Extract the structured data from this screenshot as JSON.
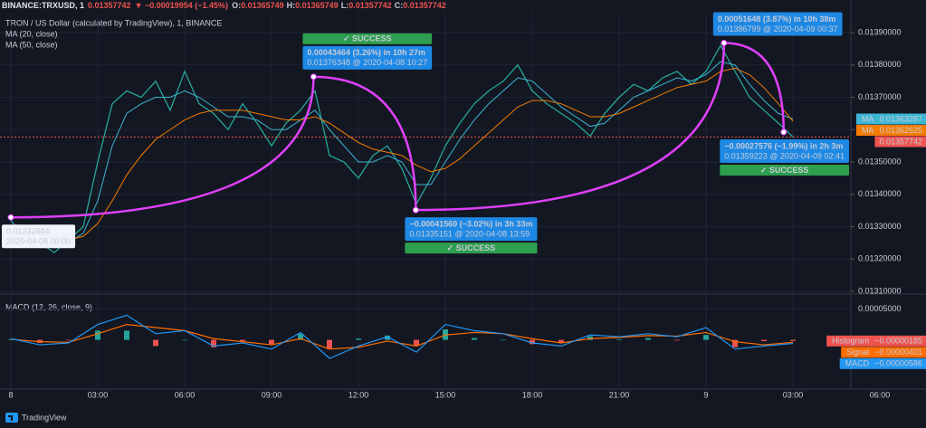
{
  "header": {
    "symbol": "BINANCE:TRXUSD, 1",
    "last": 0.01357742,
    "change": "▼ −0.00019954 (−1.45%)",
    "ohlc": [
      {
        "label": "O:",
        "value": 0.01365749
      },
      {
        "label": "H:",
        "value": 0.01365749
      },
      {
        "label": "L:",
        "value": 0.01357742
      },
      {
        "label": "C:",
        "value": 0.01357742
      }
    ]
  },
  "footer": {
    "brand": "TradingView"
  },
  "chart_data": [
    {
      "type": "line",
      "title": "TRON / US Dollar (calculated by TradingView), 1, BINANCE",
      "x": [
        0,
        0.5,
        1,
        1.5,
        2,
        2.5,
        3,
        3.5,
        4,
        4.5,
        5,
        5.5,
        6,
        6.5,
        7,
        7.5,
        8,
        8.5,
        9,
        9.5,
        10,
        10.5,
        11,
        11.5,
        12,
        12.5,
        13,
        13.5,
        14,
        14.5,
        15,
        15.5,
        16,
        16.5,
        17,
        17.5,
        18,
        18.5,
        19,
        19.5,
        20,
        20.5,
        21,
        21.5,
        22,
        22.5,
        23,
        23.5,
        24,
        24.5,
        25,
        25.5,
        26,
        26.5,
        27
      ],
      "xlim": [
        -0.375,
        29
      ],
      "xticks": [
        {
          "value": 0,
          "label": "8"
        },
        {
          "value": 3,
          "label": "03:00"
        },
        {
          "value": 6,
          "label": "06:00"
        },
        {
          "value": 9,
          "label": "09:00"
        },
        {
          "value": 12,
          "label": "12:00"
        },
        {
          "value": 15,
          "label": "15:00"
        },
        {
          "value": 18,
          "label": "18:00"
        },
        {
          "value": 21,
          "label": "21:00"
        },
        {
          "value": 24,
          "label": "9"
        },
        {
          "value": 27,
          "label": "03:00"
        },
        {
          "value": 30,
          "label": "06:00"
        }
      ],
      "ylim": [
        0.0131,
        0.01397
      ],
      "yticks": [
        {
          "value": 0.0131,
          "label": "0.01310000"
        },
        {
          "value": 0.0132,
          "label": "0.01320000"
        },
        {
          "value": 0.0133,
          "label": "0.01330000"
        },
        {
          "value": 0.0134,
          "label": "0.01340000"
        },
        {
          "value": 0.0135,
          "label": "0.01350000"
        },
        {
          "value": 0.0136,
          "label": "0.01360000"
        },
        {
          "value": 0.0137,
          "label": "0.01370000"
        },
        {
          "value": 0.0138,
          "label": "0.01380000"
        },
        {
          "value": 0.0139,
          "label": "0.01390000"
        }
      ],
      "grid": true,
      "series": [
        {
          "color": "#26a69a",
          "last_color": "#ef5350",
          "values": [
            0.01332,
            0.01326,
            0.01325,
            0.01322,
            0.01326,
            0.0133,
            0.0135,
            0.01368,
            0.01372,
            0.0137,
            0.01375,
            0.01366,
            0.01378,
            0.01368,
            0.01365,
            0.0136,
            0.01368,
            0.01362,
            0.01355,
            0.01362,
            0.01366,
            0.01372,
            0.01352,
            0.0135,
            0.01345,
            0.01352,
            0.01355,
            0.01348,
            0.01337,
            0.01345,
            0.01355,
            0.01362,
            0.01368,
            0.01372,
            0.01375,
            0.0138,
            0.01372,
            0.01368,
            0.01365,
            0.01362,
            0.01358,
            0.01365,
            0.0137,
            0.01374,
            0.01372,
            0.01376,
            0.01378,
            0.01374,
            0.01378,
            0.01386,
            0.01378,
            0.0137,
            0.01366,
            0.01362,
            0.01357742
          ]
        },
        {
          "name": "MA (20, close)",
          "tag": "MA",
          "color": "#3cb6d3",
          "values": [
            0.0133,
            0.01328,
            0.01326,
            0.01325,
            0.01325,
            0.01328,
            0.01338,
            0.01355,
            0.01365,
            0.01368,
            0.0137,
            0.0137,
            0.01372,
            0.0137,
            0.01367,
            0.01364,
            0.01364,
            0.01363,
            0.0136,
            0.0136,
            0.01363,
            0.01366,
            0.0136,
            0.01355,
            0.0135,
            0.0135,
            0.01352,
            0.0135,
            0.01343,
            0.01343,
            0.0135,
            0.01357,
            0.01363,
            0.01368,
            0.01372,
            0.01376,
            0.01375,
            0.01371,
            0.01367,
            0.01364,
            0.01361,
            0.01362,
            0.01366,
            0.0137,
            0.01372,
            0.01374,
            0.01376,
            0.01375,
            0.01377,
            0.01381,
            0.0138,
            0.01374,
            0.01369,
            0.01365,
            0.01363287
          ]
        },
        {
          "name": "MA (50, close)",
          "tag": "MA",
          "color": "#f57c00",
          "values": [
            0.0133,
            0.01329,
            0.01328,
            0.01327,
            0.01326,
            0.01327,
            0.01331,
            0.01338,
            0.01346,
            0.01352,
            0.01357,
            0.0136,
            0.01363,
            0.01365,
            0.01366,
            0.01366,
            0.01366,
            0.01365,
            0.01364,
            0.01363,
            0.01363,
            0.01364,
            0.01362,
            0.01359,
            0.01356,
            0.01354,
            0.01353,
            0.01352,
            0.01349,
            0.01347,
            0.01348,
            0.01351,
            0.01355,
            0.01359,
            0.01363,
            0.01367,
            0.01369,
            0.01369,
            0.01368,
            0.01366,
            0.01364,
            0.01364,
            0.01365,
            0.01367,
            0.01369,
            0.01371,
            0.01373,
            0.01374,
            0.01375,
            0.01378,
            0.01379,
            0.01377,
            0.01373,
            0.01368,
            0.01362625
          ]
        }
      ],
      "arc_color": "#e040fb",
      "annotations": [
        {
          "x": 0,
          "price": 0.01332884,
          "style": "white",
          "placement": "below",
          "lines": [
            "0.01332884",
            "2020-04-08 00:00"
          ]
        },
        {
          "x": 10.45,
          "price": 0.01376348,
          "style": "blue",
          "placement": "above",
          "lines": [
            "0.00043464 (3.26%) in 10h 27m",
            "0.01376348 @ 2020-04-08  10:27"
          ],
          "success": "✓ SUCCESS"
        },
        {
          "x": 13.98,
          "price": 0.01335151,
          "style": "blue",
          "placement": "below",
          "lines": [
            "−0.00041560 (−3.02%) in 3h 33m",
            "0.01335151 @ 2020-04-08  13:59"
          ],
          "success": "✓ SUCCESS"
        },
        {
          "x": 24.62,
          "price": 0.01386799,
          "style": "blue",
          "placement": "above",
          "lines": [
            "0.00051648 (3.87%) in 10h 38m",
            "0.01386799 @ 2020-04-09  00:37"
          ]
        },
        {
          "x": 26.68,
          "price": 0.01359223,
          "style": "blue",
          "placement": "below",
          "lines": [
            "−0.00027576 (−1.99%) in 2h 3m",
            "0.01359223 @ 2020-04-09  02:41"
          ],
          "success": "✓ SUCCESS"
        }
      ]
    },
    {
      "type": "macd",
      "title": "MACD (12, 26, close, 9)",
      "x": [
        0,
        1,
        2,
        3,
        4,
        5,
        6,
        7,
        8,
        9,
        10,
        11,
        12,
        13,
        14,
        15,
        16,
        17,
        18,
        19,
        20,
        21,
        22,
        23,
        24,
        25,
        26,
        27
      ],
      "ylim": [
        -8e-05,
        7e-05
      ],
      "yticks": [
        {
          "value": 5e-05,
          "label": "0.00005000"
        }
      ],
      "series": [
        {
          "name": "Histogram",
          "kind": "histogram",
          "up_color": "#26a69a",
          "down_color": "#ef5350",
          "tag_color": "#ef5350",
          "last_label": "−0.00000185",
          "values": [
            1e-06,
            -5e-06,
            -1e-06,
            1.5e-05,
            1.5e-05,
            -1e-05,
            0,
            -1.2e-05,
            -2e-06,
            -7e-06,
            1e-05,
            -1.5e-05,
            2e-06,
            7e-06,
            -1e-05,
            1.7e-05,
            3e-06,
            0,
            -7e-06,
            -5e-06,
            6e-06,
            1e-06,
            3e-06,
            -1e-06,
            8e-06,
            -1.2e-05,
            -2e-06,
            -1.85e-06
          ]
        },
        {
          "name": "Signal",
          "color": "#ff6d00",
          "tag_color": "#ff6d00",
          "last_label": "−0.00000401",
          "values": [
            1e-06,
            -3e-06,
            -4e-06,
            1e-05,
            2.5e-05,
            2e-05,
            1.5e-05,
            2e-06,
            -3e-06,
            -8e-06,
            2e-06,
            -1.5e-05,
            -1.2e-05,
            -2e-06,
            -1e-05,
            8e-06,
            1.2e-05,
            1e-05,
            2e-06,
            -5e-06,
            2e-06,
            4e-06,
            7e-06,
            6e-06,
            1.2e-05,
            -3e-06,
            -8e-06,
            -4.01e-06
          ]
        },
        {
          "name": "MACD",
          "color": "#2196f3",
          "tag_color": "#2196f3",
          "last_label": "−0.00000586",
          "values": [
            2e-06,
            -8e-06,
            -5e-06,
            2.5e-05,
            4e-05,
            1e-05,
            1.5e-05,
            -1e-05,
            -5e-06,
            -1.5e-05,
            1.2e-05,
            -3e-05,
            -1e-05,
            5e-06,
            -2e-05,
            2.5e-05,
            1.5e-05,
            1e-05,
            -5e-06,
            -1e-05,
            8e-06,
            5e-06,
            1e-05,
            5e-06,
            2e-05,
            -1.5e-05,
            -1e-05,
            -5.86e-06
          ]
        }
      ]
    }
  ]
}
